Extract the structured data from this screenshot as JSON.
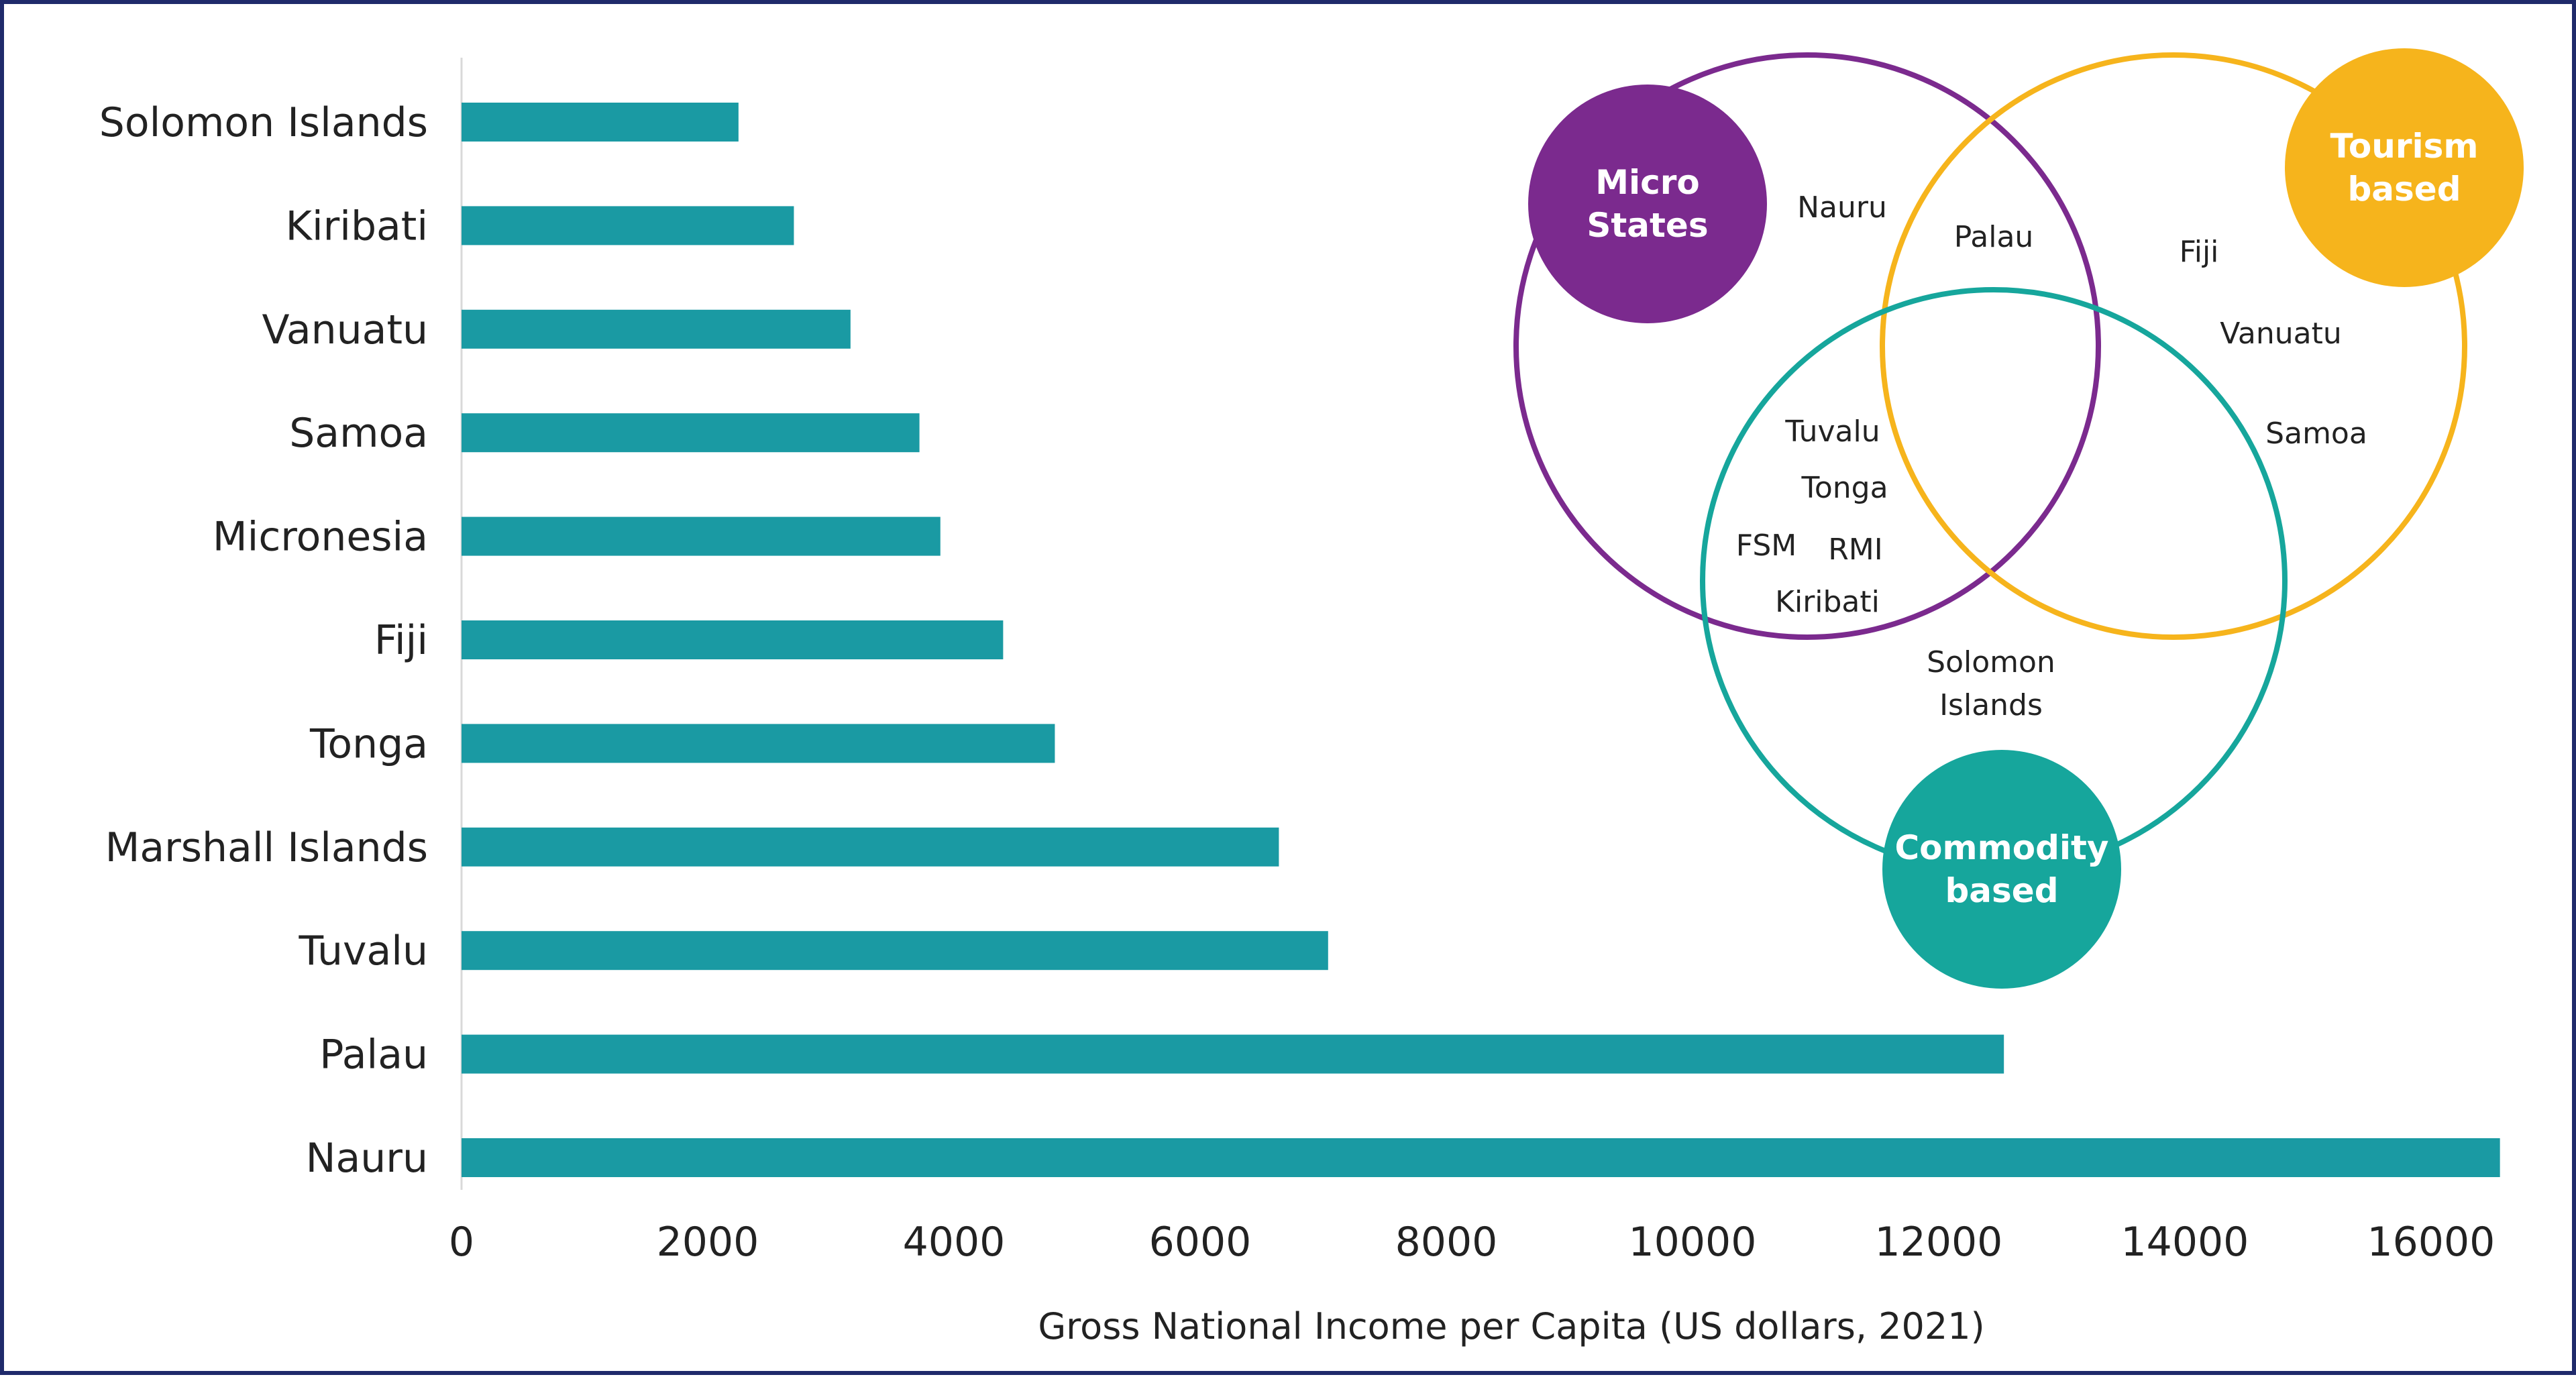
{
  "chart_data": {
    "type": "bar",
    "orientation": "horizontal",
    "categories": [
      "Solomon Islands",
      "Kiribati",
      "Vanuatu",
      "Samoa",
      "Micronesia",
      "Fiji",
      "Tonga",
      "Marshall Islands",
      "Tuvalu",
      "Palau",
      "Nauru"
    ],
    "values": [
      2250,
      2700,
      3160,
      3720,
      3890,
      4400,
      4820,
      6640,
      7040,
      12530,
      16560
    ],
    "xlabel": "Gross National Income per Capita (US dollars, 2021)",
    "ylabel": "",
    "xlim": [
      0,
      16600
    ],
    "xticks": [
      0,
      2000,
      4000,
      6000,
      8000,
      10000,
      12000,
      14000,
      16000
    ],
    "grid": false,
    "bar_color": "#1a9aa3"
  },
  "venn": {
    "sets": [
      {
        "key": "micro",
        "title_lines": [
          "Micro",
          "States"
        ],
        "color": "#7b2a8e"
      },
      {
        "key": "tourism",
        "title_lines": [
          "Tourism",
          "based"
        ],
        "color": "#f6b41c"
      },
      {
        "key": "commodity",
        "title_lines": [
          "Commodity",
          "based"
        ],
        "color": "#16a69c"
      }
    ],
    "members": [
      {
        "lines": [
          "Nauru"
        ],
        "region": "micro-only"
      },
      {
        "lines": [
          "Palau"
        ],
        "region": "micro-tourism"
      },
      {
        "lines": [
          "Fiji"
        ],
        "region": "tourism-only"
      },
      {
        "lines": [
          "Vanuatu"
        ],
        "region": "tourism-only"
      },
      {
        "lines": [
          "Samoa"
        ],
        "region": "tourism-commodity"
      },
      {
        "lines": [
          "Tuvalu"
        ],
        "region": "micro-commodity"
      },
      {
        "lines": [
          "Tonga"
        ],
        "region": "micro-commodity"
      },
      {
        "lines": [
          "FSM"
        ],
        "region": "micro-commodity"
      },
      {
        "lines": [
          "RMI"
        ],
        "region": "micro-commodity"
      },
      {
        "lines": [
          "Kiribati"
        ],
        "region": "micro-commodity"
      },
      {
        "lines": [
          "Solomon",
          "Islands"
        ],
        "region": "commodity-only"
      }
    ]
  }
}
